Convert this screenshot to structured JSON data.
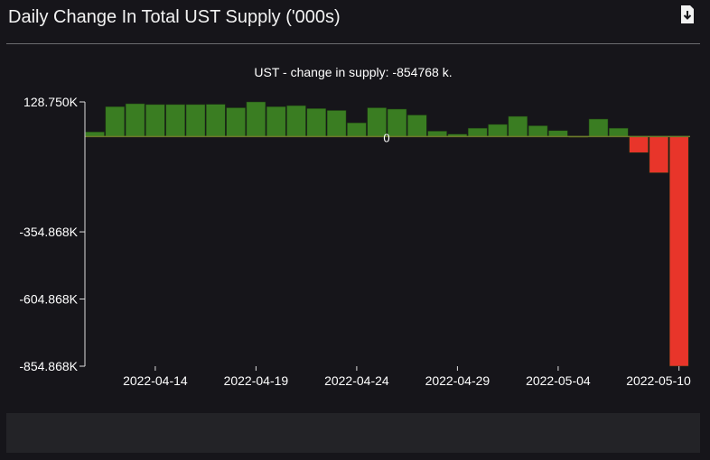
{
  "header": {
    "title": "Daily Change In Total UST Supply ('000s)",
    "download_icon": "file-download-icon"
  },
  "chart_data": {
    "type": "bar",
    "title": "UST - change in supply: -854768 k.",
    "xlabel": "",
    "ylabel": "",
    "ylim": [
      -854868,
      128750
    ],
    "y_ticks": [
      {
        "value": 128750,
        "label": "128.750K"
      },
      {
        "value": 0,
        "label": "0"
      },
      {
        "value": -354868,
        "label": "-354.868K"
      },
      {
        "value": -604868,
        "label": "-604.868K"
      },
      {
        "value": -854868,
        "label": "-854.868K"
      }
    ],
    "x_ticks": [
      "2022-04-14",
      "2022-04-19",
      "2022-04-24",
      "2022-04-29",
      "2022-05-04",
      "2022-05-10"
    ],
    "categories": [
      "2022-04-11",
      "2022-04-12",
      "2022-04-13",
      "2022-04-14",
      "2022-04-15",
      "2022-04-16",
      "2022-04-17",
      "2022-04-18",
      "2022-04-19",
      "2022-04-20",
      "2022-04-21",
      "2022-04-22",
      "2022-04-23",
      "2022-04-24",
      "2022-04-25",
      "2022-04-26",
      "2022-04-27",
      "2022-04-28",
      "2022-04-29",
      "2022-04-30",
      "2022-05-01",
      "2022-05-02",
      "2022-05-03",
      "2022-05-04",
      "2022-05-05",
      "2022-05-06",
      "2022-05-07",
      "2022-05-08",
      "2022-05-09",
      "2022-05-10"
    ],
    "values": [
      17000,
      111000,
      122000,
      119000,
      119000,
      119000,
      120000,
      107000,
      128750,
      111000,
      115000,
      104000,
      97000,
      51000,
      107000,
      102000,
      80000,
      20000,
      9000,
      31000,
      45000,
      75000,
      40000,
      22000,
      -1000,
      65000,
      31000,
      -60000,
      -135000,
      -854768
    ],
    "colors": {
      "positive": "#3a7d22",
      "negative": "#e8352a"
    },
    "grid": false
  }
}
